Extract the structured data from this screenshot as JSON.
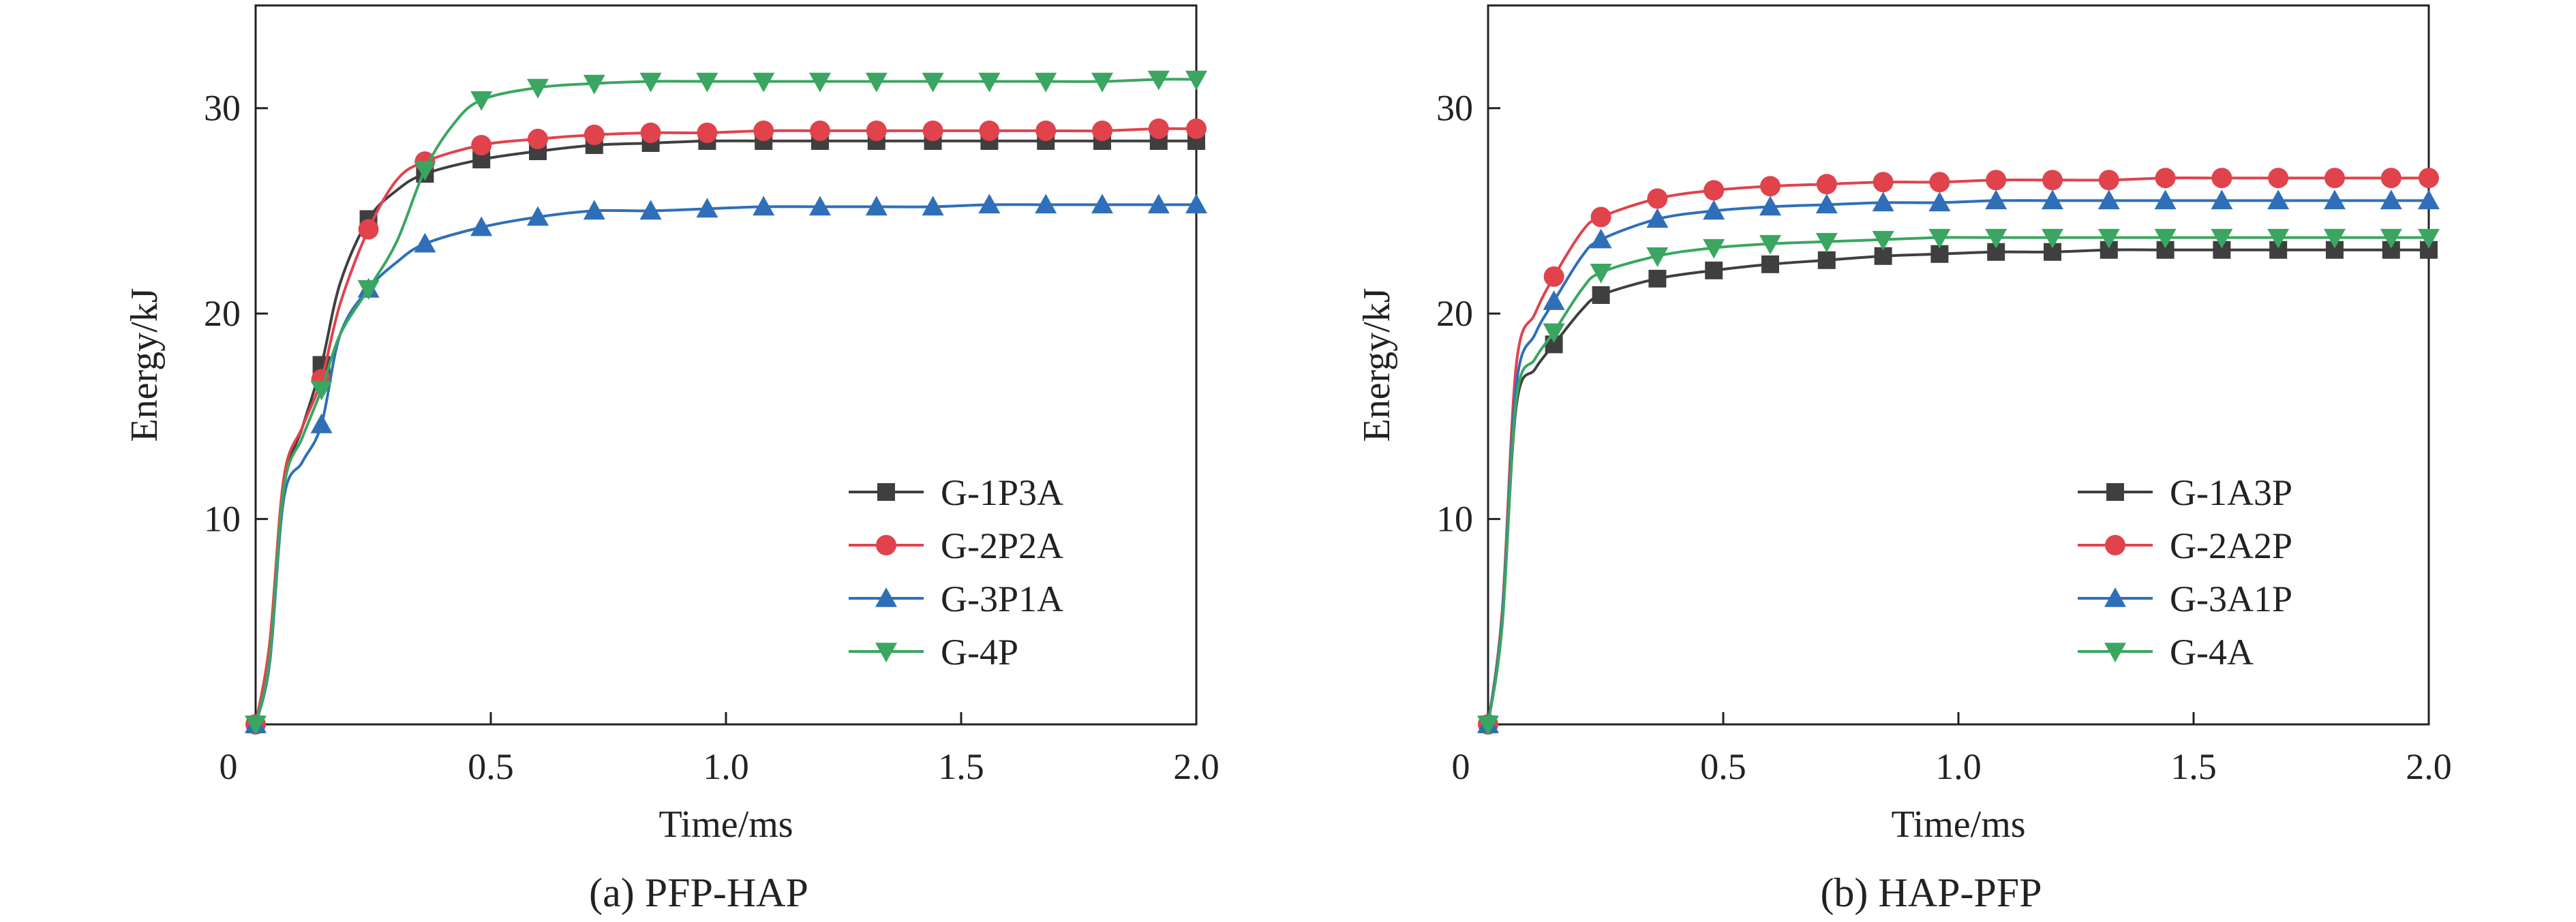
{
  "colors": {
    "G1": "#3f3f3f",
    "G2": "#e0434c",
    "G3": "#2f6fb9",
    "G4": "#3aa661"
  },
  "chart_data": [
    {
      "type": "line",
      "caption": "(a) PFP-HAP",
      "xlabel": "Time/ms",
      "ylabel": "Energy/kJ",
      "xlim": [
        0,
        2.0
      ],
      "ylim": [
        0,
        35
      ],
      "xticks": [
        0,
        0.5,
        1.0,
        1.5,
        2.0
      ],
      "xtick_labels": [
        "0",
        "0.5",
        "1.0",
        "1.5",
        "2.0"
      ],
      "yticks": [
        10,
        20,
        30
      ],
      "ytick_labels": [
        "10",
        "20",
        "30"
      ],
      "legend_position": "bottom-right",
      "series": [
        {
          "name": "G-1P3A",
          "marker": "square",
          "color_key": "G1",
          "x": [
            0,
            0.03,
            0.06,
            0.1,
            0.14,
            0.18,
            0.24,
            0.3,
            0.36,
            0.48,
            0.6,
            0.72,
            0.84,
            0.96,
            1.08,
            1.2,
            1.32,
            1.44,
            1.56,
            1.68,
            1.8,
            1.92,
            2.0
          ],
          "y": [
            0,
            3.5,
            11.5,
            14.5,
            17.5,
            21.5,
            24.6,
            26.0,
            26.8,
            27.5,
            27.9,
            28.2,
            28.3,
            28.4,
            28.4,
            28.4,
            28.4,
            28.4,
            28.4,
            28.4,
            28.4,
            28.4,
            28.4
          ],
          "markers_at": [
            0,
            0.14,
            0.24,
            0.36,
            0.48,
            0.6,
            0.72,
            0.84,
            0.96,
            1.08,
            1.2,
            1.32,
            1.44,
            1.56,
            1.68,
            1.8,
            1.92,
            2.0
          ]
        },
        {
          "name": "G-2P2A",
          "marker": "circle",
          "color_key": "G2",
          "x": [
            0,
            0.03,
            0.06,
            0.1,
            0.14,
            0.18,
            0.24,
            0.3,
            0.36,
            0.48,
            0.6,
            0.72,
            0.84,
            0.96,
            1.08,
            1.2,
            1.32,
            1.44,
            1.56,
            1.68,
            1.8,
            1.92,
            2.0
          ],
          "y": [
            0,
            4.0,
            12.0,
            14.5,
            16.8,
            20.5,
            24.1,
            26.5,
            27.4,
            28.2,
            28.5,
            28.7,
            28.8,
            28.8,
            28.9,
            28.9,
            28.9,
            28.9,
            28.9,
            28.9,
            28.9,
            29.0,
            29.0
          ],
          "markers_at": [
            0,
            0.14,
            0.24,
            0.36,
            0.48,
            0.6,
            0.72,
            0.84,
            0.96,
            1.08,
            1.2,
            1.32,
            1.44,
            1.56,
            1.68,
            1.8,
            1.92,
            2.0
          ]
        },
        {
          "name": "G-3P1A",
          "marker": "triangle-up",
          "color_key": "G3",
          "x": [
            0,
            0.03,
            0.06,
            0.1,
            0.14,
            0.18,
            0.24,
            0.3,
            0.36,
            0.48,
            0.6,
            0.72,
            0.84,
            0.96,
            1.08,
            1.2,
            1.32,
            1.44,
            1.56,
            1.68,
            1.8,
            1.92,
            2.0
          ],
          "y": [
            0,
            3.0,
            11.0,
            12.8,
            14.6,
            19.0,
            21.2,
            22.5,
            23.4,
            24.2,
            24.7,
            25.0,
            25.0,
            25.1,
            25.2,
            25.2,
            25.2,
            25.2,
            25.3,
            25.3,
            25.3,
            25.3,
            25.3
          ],
          "markers_at": [
            0,
            0.14,
            0.24,
            0.36,
            0.48,
            0.6,
            0.72,
            0.84,
            0.96,
            1.08,
            1.2,
            1.32,
            1.44,
            1.56,
            1.68,
            1.8,
            1.92,
            2.0
          ]
        },
        {
          "name": "G-4P",
          "marker": "triangle-down",
          "color_key": "G4",
          "x": [
            0,
            0.03,
            0.06,
            0.1,
            0.14,
            0.18,
            0.24,
            0.3,
            0.36,
            0.42,
            0.48,
            0.6,
            0.72,
            0.84,
            0.96,
            1.08,
            1.2,
            1.32,
            1.44,
            1.56,
            1.68,
            1.8,
            1.92,
            2.0
          ],
          "y": [
            0,
            3.2,
            11.5,
            14.0,
            16.3,
            19.0,
            21.2,
            23.5,
            27.0,
            29.2,
            30.4,
            31.0,
            31.2,
            31.3,
            31.3,
            31.3,
            31.3,
            31.3,
            31.3,
            31.3,
            31.3,
            31.3,
            31.4,
            31.4
          ],
          "markers_at": [
            0,
            0.14,
            0.24,
            0.36,
            0.48,
            0.6,
            0.72,
            0.84,
            0.96,
            1.08,
            1.2,
            1.32,
            1.44,
            1.56,
            1.68,
            1.8,
            1.92,
            2.0
          ]
        }
      ]
    },
    {
      "type": "line",
      "caption": "(b) HAP-PFP",
      "xlabel": "Time/ms",
      "ylabel": "Energy/kJ",
      "xlim": [
        0,
        2.0
      ],
      "ylim": [
        0,
        35
      ],
      "xticks": [
        0,
        0.5,
        1.0,
        1.5,
        2.0
      ],
      "xtick_labels": [
        "0",
        "0.5",
        "1.0",
        "1.5",
        "2.0"
      ],
      "yticks": [
        10,
        20,
        30
      ],
      "ytick_labels": [
        "10",
        "20",
        "30"
      ],
      "legend_position": "bottom-right",
      "series": [
        {
          "name": "G-1A3P",
          "marker": "square",
          "color_key": "G1",
          "x": [
            0,
            0.03,
            0.06,
            0.1,
            0.14,
            0.2,
            0.24,
            0.36,
            0.48,
            0.6,
            0.72,
            0.84,
            0.96,
            1.08,
            1.2,
            1.32,
            1.44,
            1.56,
            1.68,
            1.8,
            1.92,
            2.0
          ],
          "y": [
            0,
            5.0,
            15.5,
            17.3,
            18.5,
            20.2,
            20.9,
            21.7,
            22.1,
            22.4,
            22.6,
            22.8,
            22.9,
            23.0,
            23.0,
            23.1,
            23.1,
            23.1,
            23.1,
            23.1,
            23.1,
            23.1
          ],
          "markers_at": [
            0,
            0.14,
            0.24,
            0.36,
            0.48,
            0.6,
            0.72,
            0.84,
            0.96,
            1.08,
            1.2,
            1.32,
            1.44,
            1.56,
            1.68,
            1.8,
            1.92,
            2.0
          ]
        },
        {
          "name": "G-2A2P",
          "marker": "circle",
          "color_key": "G2",
          "x": [
            0,
            0.03,
            0.06,
            0.1,
            0.14,
            0.2,
            0.24,
            0.36,
            0.48,
            0.6,
            0.72,
            0.84,
            0.96,
            1.08,
            1.2,
            1.32,
            1.44,
            1.56,
            1.68,
            1.8,
            1.92,
            2.0
          ],
          "y": [
            0,
            5.5,
            17.5,
            20.0,
            21.8,
            24.0,
            24.7,
            25.6,
            26.0,
            26.2,
            26.3,
            26.4,
            26.4,
            26.5,
            26.5,
            26.5,
            26.6,
            26.6,
            26.6,
            26.6,
            26.6,
            26.6
          ],
          "markers_at": [
            0,
            0.14,
            0.24,
            0.36,
            0.48,
            0.6,
            0.72,
            0.84,
            0.96,
            1.08,
            1.2,
            1.32,
            1.44,
            1.56,
            1.68,
            1.8,
            1.92,
            2.0
          ]
        },
        {
          "name": "G-3A1P",
          "marker": "triangle-up",
          "color_key": "G3",
          "x": [
            0,
            0.03,
            0.06,
            0.1,
            0.14,
            0.2,
            0.24,
            0.36,
            0.48,
            0.6,
            0.72,
            0.84,
            0.96,
            1.08,
            1.2,
            1.32,
            1.44,
            1.56,
            1.68,
            1.8,
            1.92,
            2.0
          ],
          "y": [
            0,
            5.2,
            16.5,
            19.0,
            20.6,
            22.8,
            23.6,
            24.6,
            25.0,
            25.2,
            25.3,
            25.4,
            25.4,
            25.5,
            25.5,
            25.5,
            25.5,
            25.5,
            25.5,
            25.5,
            25.5,
            25.5
          ],
          "markers_at": [
            0,
            0.14,
            0.24,
            0.36,
            0.48,
            0.6,
            0.72,
            0.84,
            0.96,
            1.08,
            1.2,
            1.32,
            1.44,
            1.56,
            1.68,
            1.8,
            1.92,
            2.0
          ]
        },
        {
          "name": "G-4A",
          "marker": "triangle-down",
          "color_key": "G4",
          "x": [
            0,
            0.03,
            0.06,
            0.1,
            0.14,
            0.2,
            0.24,
            0.36,
            0.48,
            0.6,
            0.72,
            0.84,
            0.96,
            1.08,
            1.2,
            1.32,
            1.44,
            1.56,
            1.68,
            1.8,
            1.92,
            2.0
          ],
          "y": [
            0,
            4.8,
            15.8,
            17.8,
            19.1,
            21.2,
            22.0,
            22.8,
            23.2,
            23.4,
            23.5,
            23.6,
            23.7,
            23.7,
            23.7,
            23.7,
            23.7,
            23.7,
            23.7,
            23.7,
            23.7,
            23.7
          ],
          "markers_at": [
            0,
            0.14,
            0.24,
            0.36,
            0.48,
            0.6,
            0.72,
            0.84,
            0.96,
            1.08,
            1.2,
            1.32,
            1.44,
            1.56,
            1.68,
            1.8,
            1.92,
            2.0
          ]
        }
      ]
    }
  ]
}
